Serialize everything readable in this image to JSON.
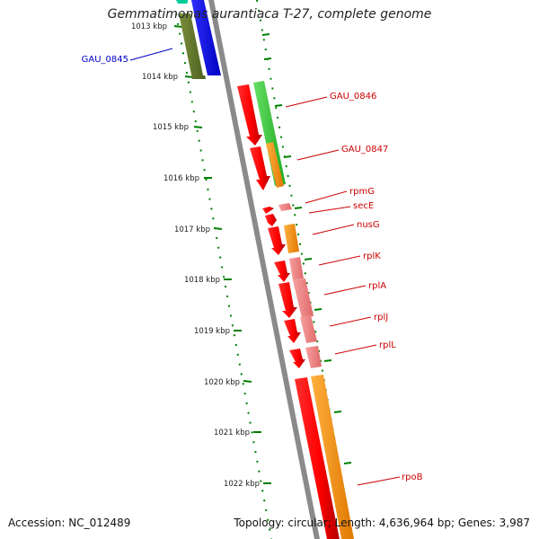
{
  "title": "Gemmatimonas aurantiaca T-27, complete genome",
  "footer": {
    "accession": "Accession: NC_012489",
    "summary": "Topology: circular; Length: 4,636,964 bp; Genes: 3,987"
  },
  "ruler": {
    "unit": "kbp",
    "ticks": [
      {
        "label": "1013 kbp",
        "kbp": 1013
      },
      {
        "label": "1014 kbp",
        "kbp": 1014
      },
      {
        "label": "1015 kbp",
        "kbp": 1015
      },
      {
        "label": "1016 kbp",
        "kbp": 1016
      },
      {
        "label": "1017 kbp",
        "kbp": 1017
      },
      {
        "label": "1018 kbp",
        "kbp": 1018
      },
      {
        "label": "1019 kbp",
        "kbp": 1019
      },
      {
        "label": "1020 kbp",
        "kbp": 1020
      },
      {
        "label": "1021 kbp",
        "kbp": 1021
      },
      {
        "label": "1022 kbp",
        "kbp": 1022
      }
    ]
  },
  "genes": [
    {
      "label": "GAU_0845",
      "color": "#0000cc"
    },
    {
      "label": "GAU_0846",
      "color": "#cc0000"
    },
    {
      "label": "GAU_0847",
      "color": "#cc0000"
    },
    {
      "label": "rpmG",
      "color": "#cc0000"
    },
    {
      "label": "secE",
      "color": "#cc0000"
    },
    {
      "label": "nusG",
      "color": "#cc0000"
    },
    {
      "label": "rplK",
      "color": "#cc0000"
    },
    {
      "label": "rplA",
      "color": "#cc0000"
    },
    {
      "label": "rplJ",
      "color": "#cc0000"
    },
    {
      "label": "rplL",
      "color": "#cc0000"
    },
    {
      "label": "rpoB",
      "color": "#cc0000"
    }
  ],
  "colors": {
    "backbone": "#808080",
    "ruler_ticks": "#008000",
    "cds_forward": "#ff0000",
    "cog_translation": "#f08080",
    "cog_transcription": "#ff8c00",
    "cog_other_green": "#33cc33",
    "cog_blue": "#0000ff",
    "cog_olive": "#556b2f",
    "cog_teal": "#00cc99"
  }
}
